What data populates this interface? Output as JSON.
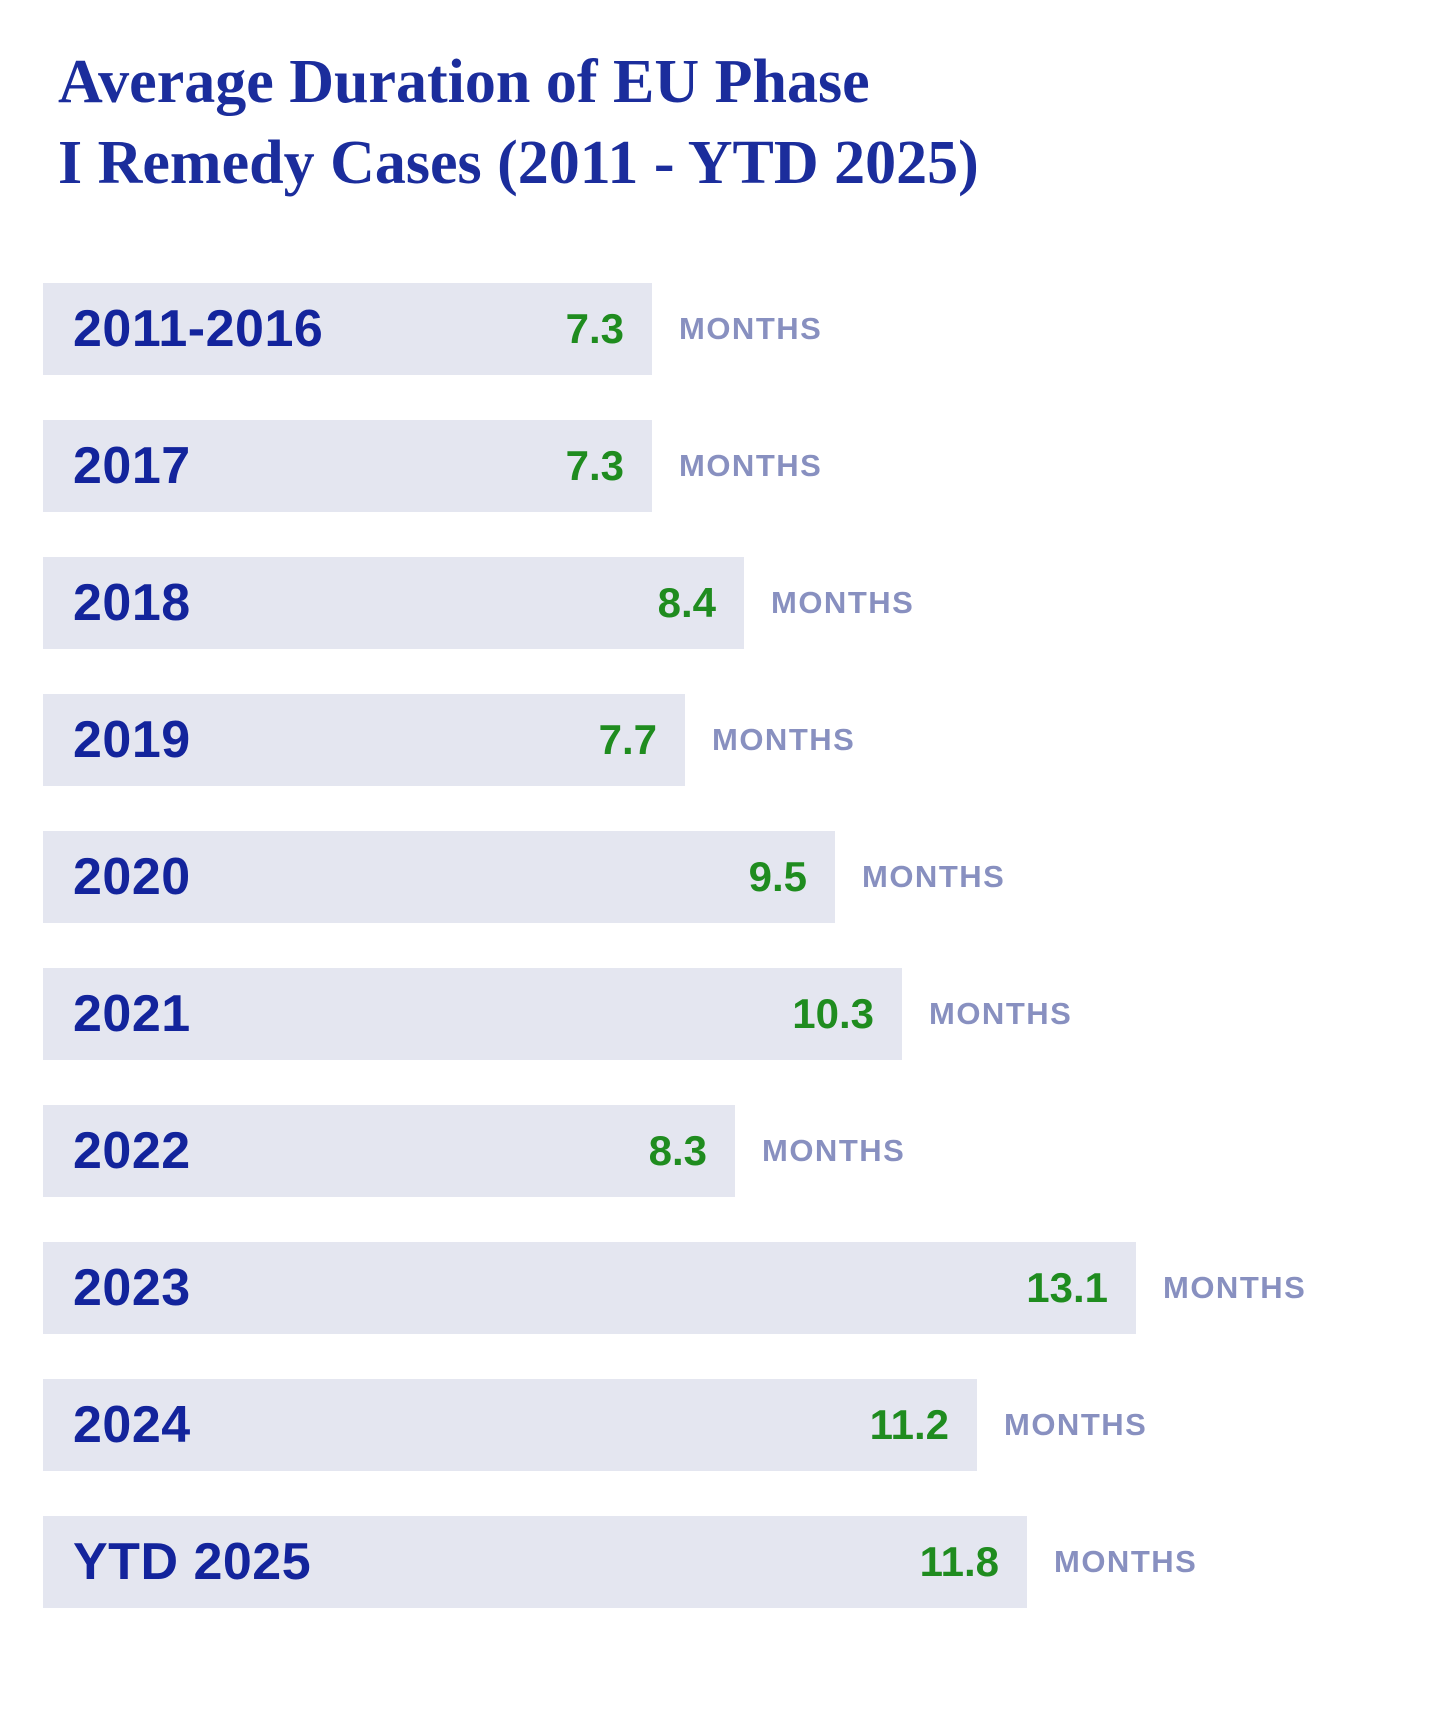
{
  "header": {
    "title_lines": [
      "Average Duration of EU Phase",
      "I Remedy Cases (2011 - YTD 2025)"
    ]
  },
  "chart_data": {
    "type": "bar",
    "orientation": "horizontal",
    "title": "Average Duration of EU Phase I Remedy Cases (2011 - YTD 2025)",
    "categories": [
      "2011-2016",
      "2017",
      "2018",
      "2019",
      "2020",
      "2021",
      "2022",
      "2023",
      "2024",
      "YTD 2025"
    ],
    "values": [
      7.3,
      7.3,
      8.4,
      7.7,
      9.5,
      10.3,
      8.3,
      13.1,
      11.2,
      11.8
    ],
    "unit_label": "MONTHS",
    "value_axis": {
      "min": 0,
      "max": 13.1
    },
    "legend": "none",
    "grid": "off",
    "colors": {
      "title_text": "#1b2d9c",
      "category_text": "#13249c",
      "value_text": "#1f8c1f",
      "unit_text": "#8890c0",
      "bar_fill": "#e4e6f0",
      "background": "#ffffff"
    }
  }
}
